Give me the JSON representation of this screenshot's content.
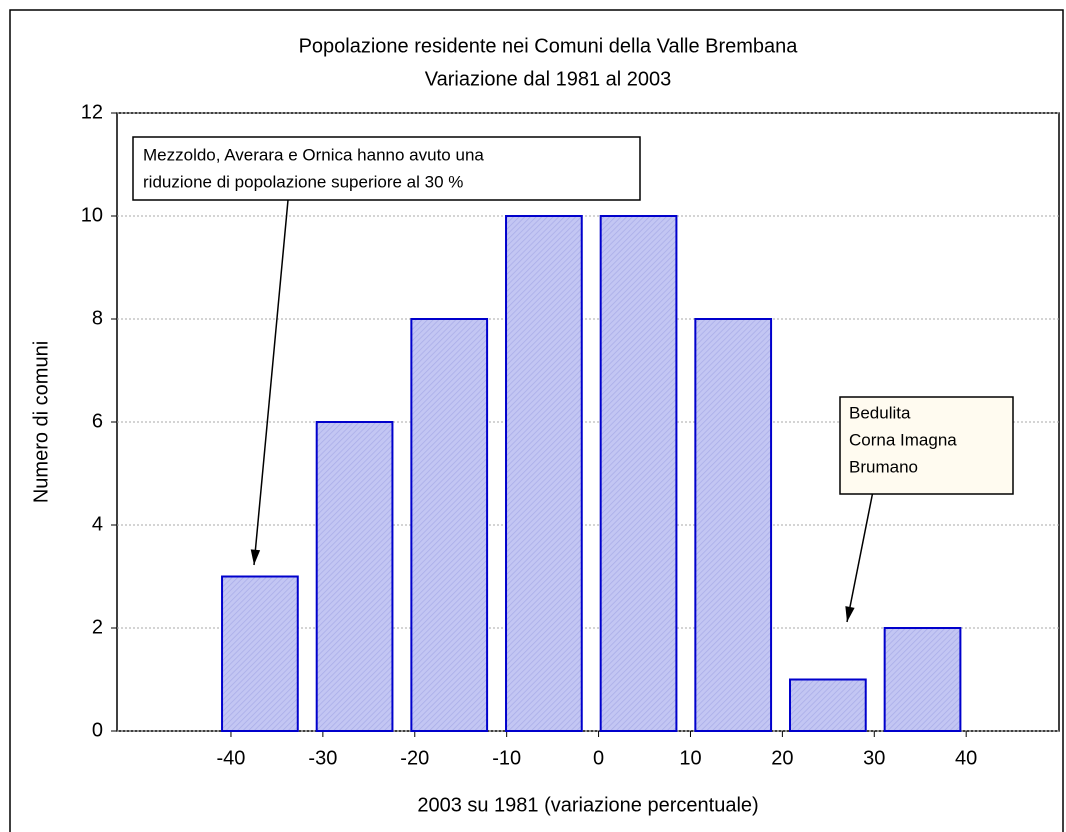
{
  "chart_data": {
    "type": "histogram",
    "title": [
      "Popolazione residente nei Comuni della Valle Brembana",
      "Variazione dal 1981 al 2003"
    ],
    "xlabel": "2003 su 1981 (variazione percentuale)",
    "ylabel": "Numero di comuni",
    "bins": [
      -42.0,
      -31.7,
      -21.4,
      -11.1,
      -0.8,
      9.5,
      19.8,
      30.1,
      40.4
    ],
    "values": [
      3,
      6,
      8,
      10,
      10,
      8,
      1,
      2
    ],
    "color": "#c3c6f3",
    "edge_color": "#0000cc",
    "xlim": [
      -52.4,
      50.1
    ],
    "xticks": [
      -40,
      -30,
      -20,
      -10,
      0,
      10,
      20,
      30,
      40
    ],
    "ylim": [
      0,
      12
    ],
    "yticks": [
      0,
      2,
      4,
      6,
      8,
      10,
      12
    ],
    "grid": true,
    "annotations": [
      {
        "lines": [
          "Mezzoldo, Averara e Ornica hanno avuto una",
          "riduzione di popolazione superiore al 30 %"
        ]
      },
      {
        "lines": [
          "Bedulita",
          "Corna Imagna",
          "Brumano"
        ]
      }
    ]
  }
}
